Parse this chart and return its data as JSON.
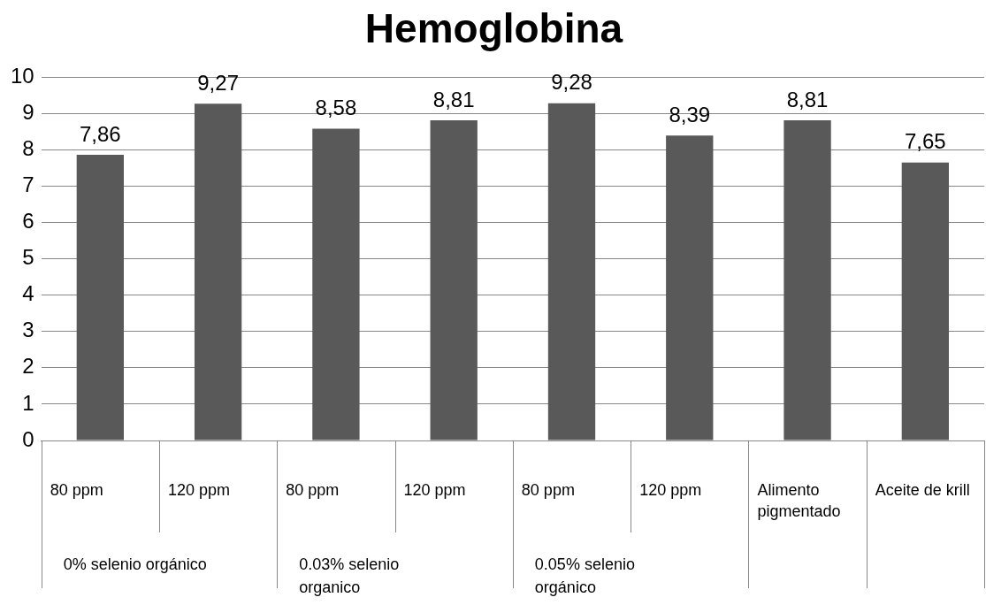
{
  "chart_data": {
    "type": "bar",
    "title": "Hemoglobina",
    "categories": [
      "80 ppm",
      "120 ppm",
      "80 ppm",
      "120 ppm",
      "80 ppm",
      "120 ppm",
      "Alimento pigmentado",
      "Aceite de krill"
    ],
    "values": [
      7.86,
      9.27,
      8.58,
      8.81,
      9.28,
      8.39,
      8.81,
      7.65
    ],
    "value_labels": [
      "7,86",
      "9,27",
      "8,58",
      "8,81",
      "9,28",
      "8,39",
      "8,81",
      "7,65"
    ],
    "color": "#595959",
    "ylim": [
      0,
      10
    ],
    "yticks": [
      0,
      1,
      2,
      3,
      4,
      5,
      6,
      7,
      8,
      9,
      10
    ],
    "grid": "y",
    "legend": false,
    "annotations": [
      "0% selenio orgánico",
      "0.03% selenio organico",
      "0.05% selenio orgánico"
    ]
  }
}
